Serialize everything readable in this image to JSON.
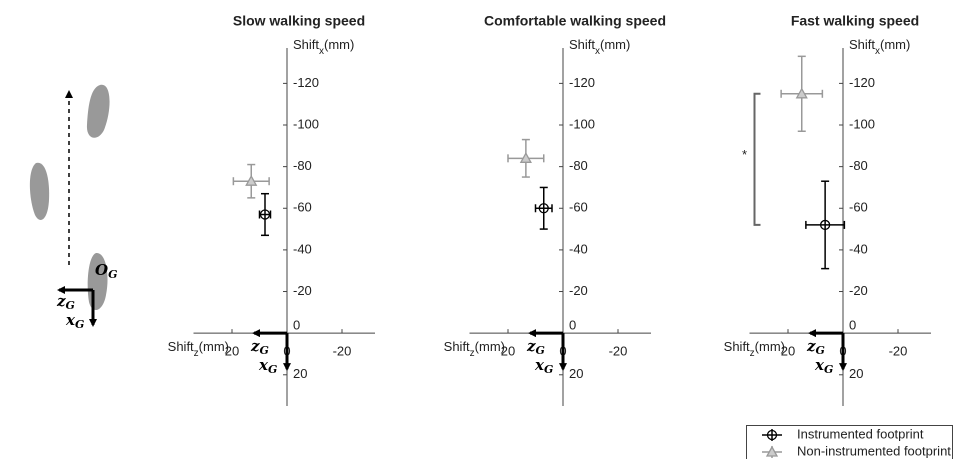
{
  "reference_frame": {
    "origin_label": "O",
    "z_label": "z",
    "x_label": "x",
    "subscript": "G"
  },
  "chart_data": [
    {
      "type": "scatter",
      "title": "Slow walking speed",
      "x_label": "Shift",
      "x_label_sub": "z",
      "x_label_unit": "(mm)",
      "y_label": "Shift",
      "y_label_sub": "x",
      "y_label_unit": "(mm)",
      "xlim": [
        34,
        -32
      ],
      "ylim": [
        35,
        -137
      ],
      "xticks": [
        20,
        0,
        -20
      ],
      "yticks": [
        -120,
        -100,
        -80,
        -60,
        -40,
        -20,
        0,
        20
      ],
      "series": [
        {
          "name": "Instrumented footprint",
          "color": "#000000",
          "marker": "circle",
          "x": [
            8
          ],
          "values": [
            -57
          ],
          "x_err": [
            2
          ],
          "y_err": [
            10
          ]
        },
        {
          "name": "Non-instrumented footprint",
          "color": "#999999",
          "marker": "triangle",
          "x": [
            13
          ],
          "values": [
            -73
          ],
          "x_err": [
            6.5
          ],
          "y_err": [
            8
          ]
        }
      ]
    },
    {
      "type": "scatter",
      "title": "Comfortable walking speed",
      "x_label": "Shift",
      "x_label_sub": "z",
      "x_label_unit": "(mm)",
      "y_label": "Shift",
      "y_label_sub": "x",
      "y_label_unit": "(mm)",
      "xlim": [
        34,
        -32
      ],
      "ylim": [
        35,
        -137
      ],
      "xticks": [
        20,
        0,
        -20
      ],
      "yticks": [
        -120,
        -100,
        -80,
        -60,
        -40,
        -20,
        0,
        20
      ],
      "series": [
        {
          "name": "Instrumented footprint",
          "color": "#000000",
          "marker": "circle",
          "x": [
            7
          ],
          "values": [
            -60
          ],
          "x_err": [
            3
          ],
          "y_err": [
            10
          ]
        },
        {
          "name": "Non-instrumented footprint",
          "color": "#999999",
          "marker": "triangle",
          "x": [
            13.5
          ],
          "values": [
            -84
          ],
          "x_err": [
            6.5
          ],
          "y_err": [
            9
          ]
        }
      ]
    },
    {
      "type": "scatter",
      "title": "Fast walking speed",
      "x_label": "Shift",
      "x_label_sub": "z",
      "x_label_unit": "(mm)",
      "y_label": "Shift",
      "y_label_sub": "x",
      "y_label_unit": "(mm)",
      "xlim": [
        34,
        -32
      ],
      "ylim": [
        35,
        -137
      ],
      "xticks": [
        20,
        0,
        -20
      ],
      "yticks": [
        -120,
        -100,
        -80,
        -60,
        -40,
        -20,
        0,
        20
      ],
      "annotation": "*",
      "series": [
        {
          "name": "Instrumented footprint",
          "color": "#000000",
          "marker": "circle",
          "x": [
            6.5
          ],
          "values": [
            -52
          ],
          "x_err": [
            7
          ],
          "y_err": [
            21
          ]
        },
        {
          "name": "Non-instrumented footprint",
          "color": "#999999",
          "marker": "triangle",
          "x": [
            15
          ],
          "values": [
            -115
          ],
          "x_err": [
            7.5
          ],
          "y_err": [
            18
          ]
        }
      ]
    }
  ]
}
